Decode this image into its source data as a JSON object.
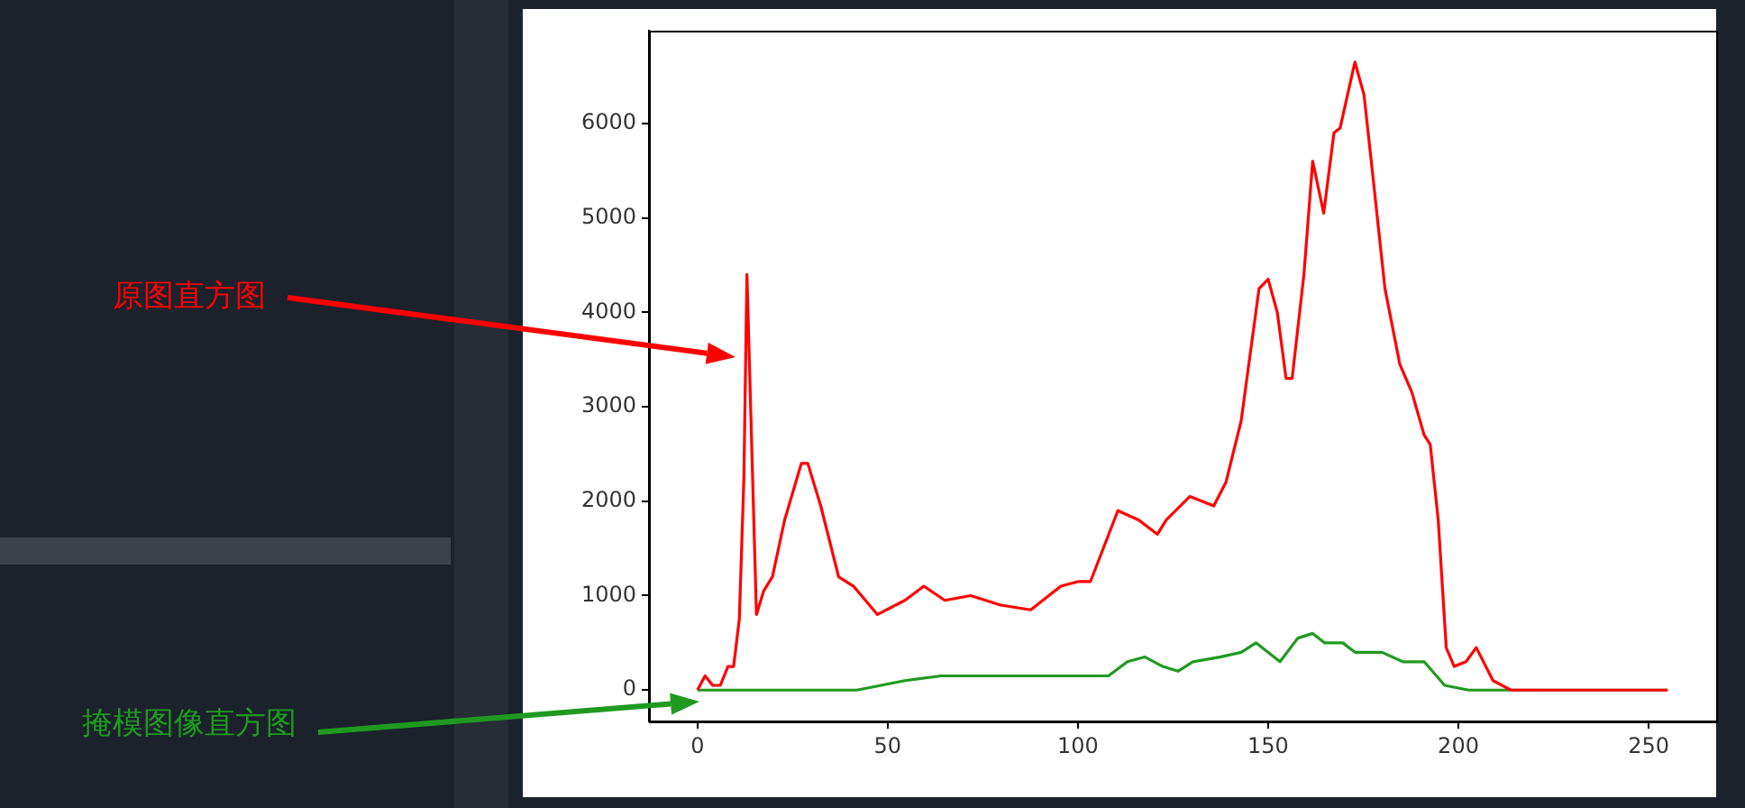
{
  "chart_data": {
    "type": "line",
    "xlim": [
      -12.75,
      267.75
    ],
    "ylim": [
      -332,
      6982
    ],
    "xticks": [
      0,
      50,
      100,
      150,
      200,
      250
    ],
    "yticks": [
      0,
      1000,
      2000,
      3000,
      4000,
      5000,
      6000
    ],
    "legend": false,
    "annotations": [
      "原图直方图",
      "掩模图像直方图"
    ],
    "series": [
      {
        "color": "#ff0000",
        "x": [
          0,
          2,
          4,
          6,
          8,
          9.5,
          11,
          12.2,
          13,
          15.5,
          17.4,
          19.7,
          22.9,
          27.3,
          29,
          32.4,
          37.1,
          41,
          47.3,
          54.5,
          59.5,
          65,
          71.8,
          79.7,
          87.6,
          95.5,
          100.2,
          103.3,
          110.5,
          116,
          120.9,
          123.2,
          129.4,
          135.7,
          138.9,
          142.9,
          147.6,
          150,
          152.4,
          154.7,
          156.3,
          159.4,
          161.7,
          164.6,
          167.3,
          168.9,
          172.8,
          175.2,
          177.5,
          180.7,
          184.6,
          187.8,
          191,
          192.6,
          194.7,
          196.8,
          198.9,
          202,
          204.7,
          209.1,
          213.8,
          255
        ],
        "values": [
          0,
          150,
          50,
          50,
          250,
          250,
          750,
          2250,
          4400,
          800,
          1050,
          1200,
          1800,
          2400,
          2400,
          1950,
          1200,
          1100,
          800,
          950,
          1100,
          950,
          1000,
          900,
          850,
          1100,
          1150,
          1150,
          1900,
          1800,
          1650,
          1800,
          2050,
          1950,
          2200,
          2850,
          4250,
          4350,
          4000,
          3300,
          3300,
          4400,
          5600,
          5050,
          5900,
          5950,
          6650,
          6300,
          5450,
          4250,
          3450,
          3150,
          2700,
          2600,
          1800,
          450,
          250,
          300,
          450,
          100,
          0,
          0
        ]
      },
      {
        "color": "#1f9a1f",
        "x": [
          0,
          41.9,
          54.5,
          64,
          72.6,
          81.3,
          97,
          108,
          113,
          117.6,
          122.3,
          126.3,
          130.2,
          137.3,
          142.9,
          146.8,
          153.1,
          157.8,
          161.7,
          164.8,
          169.6,
          172.8,
          179.9,
          185.4,
          191,
          196.4,
          202.7,
          255
        ],
        "values": [
          0,
          0,
          100,
          150,
          150,
          150,
          150,
          150,
          300,
          350,
          250,
          200,
          300,
          350,
          400,
          500,
          300,
          550,
          600,
          500,
          500,
          400,
          400,
          300,
          300,
          50,
          0,
          0
        ]
      }
    ]
  }
}
